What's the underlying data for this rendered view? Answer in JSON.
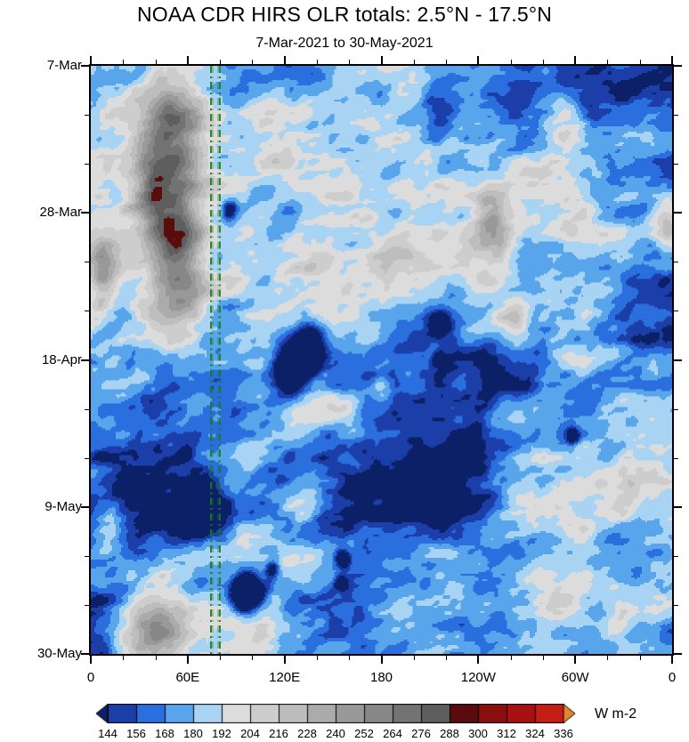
{
  "chart_data": {
    "type": "heatmap",
    "title": "NOAA CDR HIRS OLR totals: 2.5°N - 17.5°N",
    "subtitle": "7-Mar-2021 to 30-May-2021",
    "x_axis": {
      "labels": [
        "0",
        "60E",
        "120E",
        "180",
        "120W",
        "60W",
        "0"
      ],
      "range_deg": [
        0,
        360
      ],
      "minor_divisions": 18
    },
    "y_axis": {
      "labels": [
        "7-Mar",
        "28-Mar",
        "18-Apr",
        "9-May",
        "30-May"
      ],
      "range_days": [
        0,
        84
      ],
      "minor_divisions": 12
    },
    "colorbar": {
      "levels": [
        144,
        156,
        168,
        180,
        192,
        204,
        216,
        228,
        240,
        252,
        264,
        276,
        288,
        300,
        312,
        324,
        336
      ],
      "under": "#0b2066",
      "colors": [
        "#1b3ea8",
        "#2b6edd",
        "#59a5ec",
        "#a9d3f2",
        "#dcdcdc",
        "#cdcdcd",
        "#bdbdbd",
        "#ababab",
        "#999999",
        "#878787",
        "#737373",
        "#5e5e5e",
        "#5a0b0b",
        "#8b0f0f",
        "#a81111",
        "#c41f14"
      ],
      "over": "#e2862c",
      "units": "W m-2"
    },
    "reference_lines": {
      "color": "#1a7a1a",
      "style": "dash-dot",
      "lons": [
        74,
        79
      ]
    },
    "field": {
      "base": 241,
      "seed": 11,
      "shear": 0.35,
      "vstretch": 1.5,
      "clamp": [
        138,
        344
      ],
      "octaves": [
        {
          "f": 3.5,
          "amp": 24
        },
        {
          "f": 8,
          "amp": 20
        },
        {
          "f": 16,
          "amp": 15
        },
        {
          "f": 33,
          "amp": 10
        },
        {
          "f": 70,
          "amp": 6
        }
      ],
      "high_olr_regions": [
        {
          "lon": 47,
          "day": 8,
          "slon": 20,
          "sday": 8.4,
          "amp": 85
        },
        {
          "lon": 52,
          "day": 25,
          "slon": 18,
          "sday": 10,
          "amp": 115
        },
        {
          "lon": 36,
          "day": 18,
          "slon": 11,
          "sday": 4,
          "amp": 40
        },
        {
          "lon": 7,
          "day": 30,
          "slon": 9,
          "sday": 6,
          "amp": 55
        },
        {
          "lon": 248,
          "day": 22,
          "slon": 11,
          "sday": 5,
          "amp": 55
        },
        {
          "lon": 263,
          "day": 37,
          "slon": 9,
          "sday": 3,
          "amp": 40
        },
        {
          "lon": 292,
          "day": 7.5,
          "slon": 14,
          "sday": 4,
          "amp": 50
        },
        {
          "lon": 358,
          "day": 23,
          "slon": 7,
          "sday": 3.5,
          "amp": 45
        },
        {
          "lon": 36,
          "day": 80,
          "slon": 22,
          "sday": 7,
          "amp": 80
        },
        {
          "lon": 11,
          "day": 67,
          "slon": 11,
          "sday": 4,
          "amp": 40
        },
        {
          "lon": 180,
          "day": 46,
          "slon": 7,
          "sday": 2.5,
          "amp": 35
        }
      ],
      "low_olr_regions": [
        {
          "lon": 124,
          "day": 43,
          "slon": 11,
          "sday": 3.8,
          "amp": -110
        },
        {
          "lon": 135,
          "day": 40,
          "slon": 9,
          "sday": 3,
          "amp": -90
        },
        {
          "lon": 216,
          "day": 37,
          "slon": 7,
          "sday": 1.7,
          "amp": -60
        },
        {
          "lon": 85,
          "day": 20.5,
          "slon": 4.3,
          "sday": 1.7,
          "amp": -50
        },
        {
          "lon": 68,
          "day": 64,
          "slon": 12.6,
          "sday": 2.9,
          "amp": -130
        },
        {
          "lon": 96,
          "day": 75.5,
          "slon": 9,
          "sday": 2.5,
          "amp": -140
        },
        {
          "lon": 112,
          "day": 72,
          "slon": 4.3,
          "sday": 1.3,
          "amp": -60
        },
        {
          "lon": 156,
          "day": 70.5,
          "slon": 4.3,
          "sday": 1.3,
          "amp": -70
        },
        {
          "lon": 155,
          "day": 74,
          "slon": 3.6,
          "sday": 1,
          "amp": -60
        },
        {
          "lon": 299,
          "day": 53,
          "slon": 4.3,
          "sday": 1.3,
          "amp": -55
        },
        {
          "lon": 216,
          "day": 42,
          "slon": 4.3,
          "sday": 1,
          "amp": -45
        }
      ]
    }
  }
}
